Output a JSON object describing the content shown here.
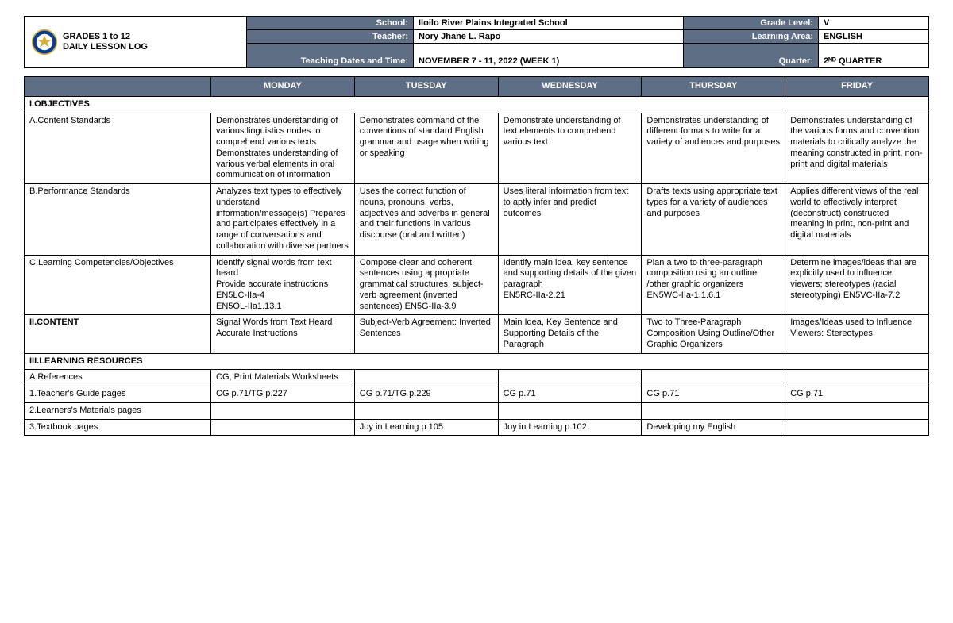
{
  "header": {
    "title_l1": "GRADES 1 to 12",
    "title_l2": "DAILY LESSON LOG",
    "rows": [
      {
        "lbl1": "School:",
        "val1": "Iloilo River Plains Integrated School",
        "lbl2": "Grade Level:",
        "val2": "V"
      },
      {
        "lbl1": "Teacher:",
        "val1": "Nory Jhane L. Rapo",
        "lbl2": "Learning Area:",
        "val2": "ENGLISH"
      },
      {
        "lbl1": "Teaching Dates and Time:",
        "val1": "NOVEMBER 7 - 11, 2022 (WEEK 1)",
        "lbl2": "Quarter:",
        "val2": "2ᴺᴰ QUARTER"
      }
    ]
  },
  "columns": [
    "MONDAY",
    "TUESDAY",
    "WEDNESDAY",
    "THURSDAY",
    "FRIDAY"
  ],
  "sections": {
    "objectives": "I.OBJECTIVES",
    "content": "II.CONTENT",
    "resources": "III.LEARNING RESOURCES"
  },
  "rows": {
    "a_content_std": {
      "label": "A.Content Standards",
      "cells": [
        "Demonstrates understanding of various linguistics nodes to comprehend various texts Demonstrates understanding of various verbal elements in oral communication of information",
        "Demonstrates command of the conventions of standard English grammar and usage when writing or speaking",
        "Demonstrate understanding of text elements to comprehend various text",
        "Demonstrates understanding of different formats to write for a variety of audiences and purposes",
        "Demonstrates understanding of the various forms and convention materials to critically analyze the meaning constructed in print, non-print and digital materials"
      ]
    },
    "b_perf_std": {
      "label": "B.Performance Standards",
      "cells": [
        "Analyzes text types to effectively understand information/message(s) Prepares and participates effectively in a range of conversations and collaboration with diverse partners",
        "Uses the correct function of nouns, pronouns, verbs, adjectives and adverbs in general and their functions in various discourse (oral and written)",
        "Uses literal information from text to aptly infer and predict outcomes",
        "Drafts texts using appropriate text types for a variety of audiences and purposes",
        "Applies different views of the real world to effectively interpret (deconstruct) constructed meaning in print, non-print and digital materials"
      ]
    },
    "c_learn_comp": {
      "label": "C.Learning Competencies/Objectives",
      "cells": [
        "Identify signal words from text heard\nProvide accurate instructions\nEN5LC-IIa-4\nEN5OL-IIa1.13.1",
        "Compose clear and coherent sentences using appropriate grammatical structures: subject-verb agreement (inverted sentences) EN5G-IIa-3.9",
        "Identify main idea, key sentence and supporting details of the given paragraph\nEN5RC-IIa-2.21",
        "Plan a two to three-paragraph composition using an outline /other graphic organizers EN5WC-IIa-1.1.6.1",
        "Determine images/ideas that are explicitly used to influence viewers; stereotypes (racial stereotyping) EN5VC-IIa-7.2"
      ]
    },
    "content": {
      "cells": [
        "Signal Words from Text Heard\nAccurate Instructions",
        "Subject-Verb Agreement: Inverted Sentences",
        "Main Idea, Key Sentence and Supporting Details of the Paragraph",
        "Two to Three-Paragraph Composition Using Outline/Other Graphic Organizers",
        "Images/Ideas used to Influence Viewers: Stereotypes"
      ]
    },
    "a_refs": {
      "label": "A.References",
      "cells": [
        "CG, Print Materials,Worksheets",
        "",
        "",
        "",
        ""
      ]
    },
    "tg": {
      "label": "1.Teacher's Guide pages",
      "cells": [
        "CG p.71/TG p.227",
        "CG p.71/TG p.229",
        "CG p.71",
        "CG p.71",
        "CG p.71"
      ]
    },
    "lm": {
      "label": "2.Learners's Materials pages",
      "cells": [
        "",
        "",
        "",
        "",
        ""
      ]
    },
    "tb": {
      "label": "3.Textbook pages",
      "cells": [
        "",
        "Joy in Learning p.105",
        "Joy in Learning p.102",
        "Developing my English",
        ""
      ]
    }
  },
  "colors": {
    "header_bg": "#5e6e85",
    "header_fg": "#ffffff",
    "border": "#000000",
    "page_bg": "#ffffff"
  }
}
